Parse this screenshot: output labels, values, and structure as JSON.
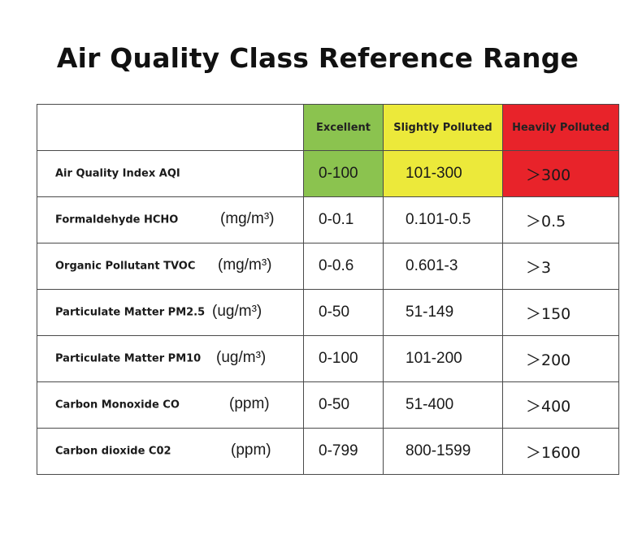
{
  "title": "Air Quality Class Reference Range",
  "header": {
    "excellent": "Excellent",
    "slightly_polluted": "Slightly Polluted",
    "heavily_polluted": "Heavily Polluted"
  },
  "colors": {
    "excellent": "#8bc34f",
    "slightly_polluted": "#ece93a",
    "heavily_polluted": "#e8232a"
  },
  "rows": [
    {
      "pollutant": "Air Quality Index AQI",
      "unit": "",
      "excellent": "0-100",
      "slightly": "101-300",
      "heavily": "＞300"
    },
    {
      "pollutant": "Formaldehyde HCHO",
      "unit": "(mg/m³)",
      "excellent": "0-0.1",
      "slightly": "0.101-0.5",
      "heavily": "＞0.5"
    },
    {
      "pollutant": "Organic Pollutant TVOC",
      "unit": "(mg/m³)",
      "excellent": "0-0.6",
      "slightly": "0.601-3",
      "heavily": "＞3"
    },
    {
      "pollutant": "Particulate Matter PM2.5",
      "unit": "(ug/m³)",
      "excellent": "0-50",
      "slightly": "51-149",
      "heavily": "＞150"
    },
    {
      "pollutant": "Particulate Matter PM10",
      "unit": "(ug/m³)",
      "excellent": "0-100",
      "slightly": "101-200",
      "heavily": "＞200"
    },
    {
      "pollutant": "Carbon Monoxide CO",
      "unit": "(ppm)",
      "excellent": "0-50",
      "slightly": "51-400",
      "heavily": "＞400"
    },
    {
      "pollutant": "Carbon dioxide C02",
      "unit": "(ppm)",
      "excellent": "0-799",
      "slightly": "800-1599",
      "heavily": "＞1600"
    }
  ]
}
